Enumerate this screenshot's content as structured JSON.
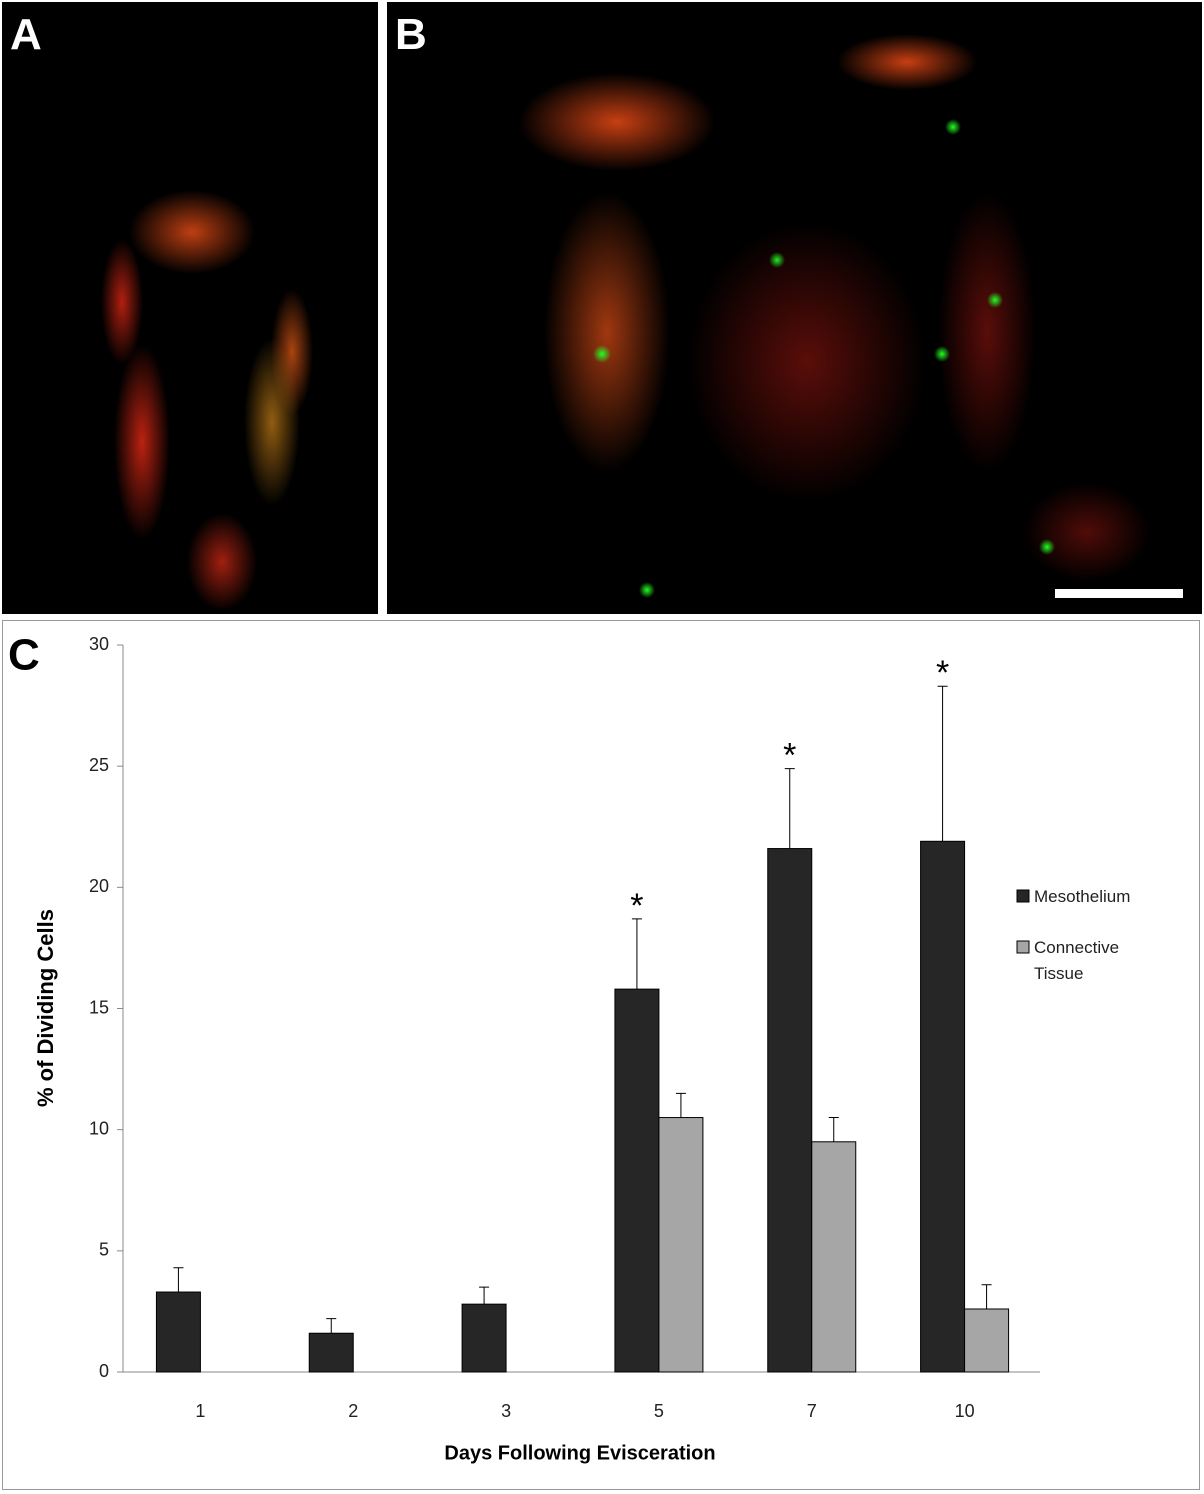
{
  "panel_labels": {
    "a": "A",
    "b": "B",
    "c": "C"
  },
  "chart_data": {
    "type": "bar",
    "y_label": "% of  Dividing  Cells",
    "x_label": "Days Following Evisceration",
    "categories": [
      "1",
      "2",
      "3",
      "5",
      "7",
      "10"
    ],
    "series": [
      {
        "name": "Mesothelium",
        "color": "#262626",
        "values": [
          3.3,
          1.6,
          2.8,
          15.8,
          21.6,
          21.9
        ],
        "errors": [
          1.0,
          0.6,
          0.7,
          2.9,
          3.3,
          6.4
        ]
      },
      {
        "name": "Connective Tissue",
        "color": "#a6a6a6",
        "values": [
          null,
          null,
          null,
          10.5,
          9.5,
          2.6
        ],
        "errors": [
          null,
          null,
          null,
          1.0,
          1.0,
          1.0
        ]
      }
    ],
    "annotations": [
      {
        "text": "*",
        "x": "5"
      },
      {
        "text": "*",
        "x": "7"
      },
      {
        "text": "*",
        "x": "10"
      }
    ],
    "ylim": [
      0,
      30
    ],
    "yticks": [
      0,
      5,
      10,
      15,
      20,
      25,
      30
    ],
    "legend": "right",
    "grid": false
  }
}
